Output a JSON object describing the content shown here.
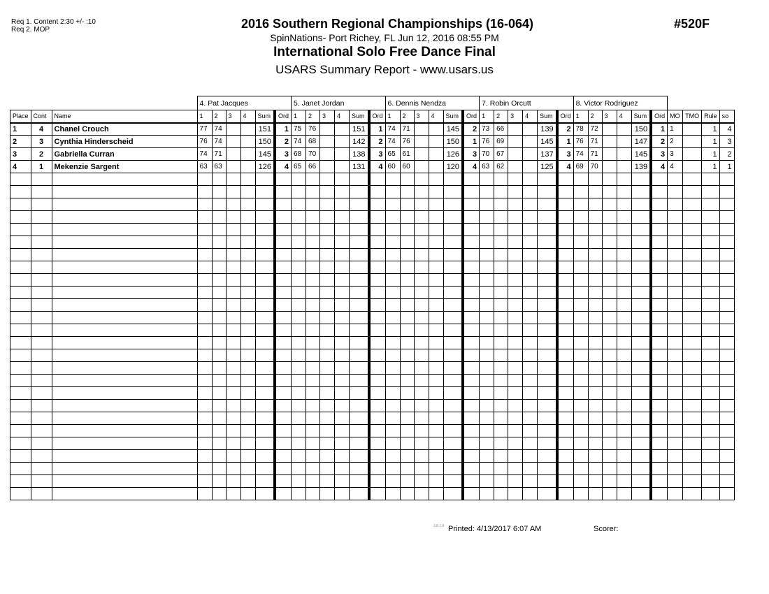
{
  "requirements": [
    "Req  1.  Content 2:30 +/- :10",
    "Req  2.  MOP"
  ],
  "header": {
    "title": "2016 Southern Regional Championships (16-064)",
    "location": "SpinNations- Port Richey, FL  Jun 12, 2016  08:55 PM",
    "event": "International Solo Free Dance Final",
    "report": "USARS Summary Report - www.usars.us",
    "event_number": "#520F"
  },
  "judges": [
    "4.  Pat Jacques",
    "5.  Janet Jordan",
    "6.  Dennis Nendza",
    "7.  Robin Orcutt",
    "8.  Victor Rodriguez"
  ],
  "columns": {
    "place": "Place",
    "cont": "Cont",
    "name": "Name",
    "judge_cols": [
      "1",
      "2",
      "3",
      "4",
      "Sum",
      "Ord"
    ],
    "mo": "MO",
    "tmo": "TMO",
    "rule": "Rule",
    "so": "so"
  },
  "rows": [
    {
      "place": "1",
      "cont": "4",
      "name": "Chanel Crouch",
      "scores": [
        [
          "77",
          "74",
          "151",
          "1"
        ],
        [
          "75",
          "76",
          "151",
          "1"
        ],
        [
          "74",
          "71",
          "145",
          "2"
        ],
        [
          "73",
          "66",
          "139",
          "2"
        ],
        [
          "78",
          "72",
          "150",
          "1"
        ]
      ],
      "mo": "1",
      "tmo": "",
      "rule": "1",
      "so": "4"
    },
    {
      "place": "2",
      "cont": "3",
      "name": "Cynthia Hinderscheid",
      "scores": [
        [
          "76",
          "74",
          "150",
          "2"
        ],
        [
          "74",
          "68",
          "142",
          "2"
        ],
        [
          "74",
          "76",
          "150",
          "1"
        ],
        [
          "76",
          "69",
          "145",
          "1"
        ],
        [
          "76",
          "71",
          "147",
          "2"
        ]
      ],
      "mo": "2",
      "tmo": "",
      "rule": "1",
      "so": "3"
    },
    {
      "place": "3",
      "cont": "2",
      "name": "Gabriella Curran",
      "scores": [
        [
          "74",
          "71",
          "145",
          "3"
        ],
        [
          "68",
          "70",
          "138",
          "3"
        ],
        [
          "65",
          "61",
          "126",
          "3"
        ],
        [
          "70",
          "67",
          "137",
          "3"
        ],
        [
          "74",
          "71",
          "145",
          "3"
        ]
      ],
      "mo": "3",
      "tmo": "",
      "rule": "1",
      "so": "2"
    },
    {
      "place": "4",
      "cont": "1",
      "name": "Mekenzie Sargent",
      "scores": [
        [
          "63",
          "63",
          "126",
          "4"
        ],
        [
          "65",
          "66",
          "131",
          "4"
        ],
        [
          "60",
          "60",
          "120",
          "4"
        ],
        [
          "63",
          "62",
          "125",
          "4"
        ],
        [
          "69",
          "70",
          "139",
          "4"
        ]
      ],
      "mo": "4",
      "tmo": "",
      "rule": "1",
      "so": "1"
    }
  ],
  "footer": {
    "version": "3.8.1.8",
    "printed": "Printed:  4/13/2017  6:07 AM",
    "scorer": "Scorer:"
  }
}
